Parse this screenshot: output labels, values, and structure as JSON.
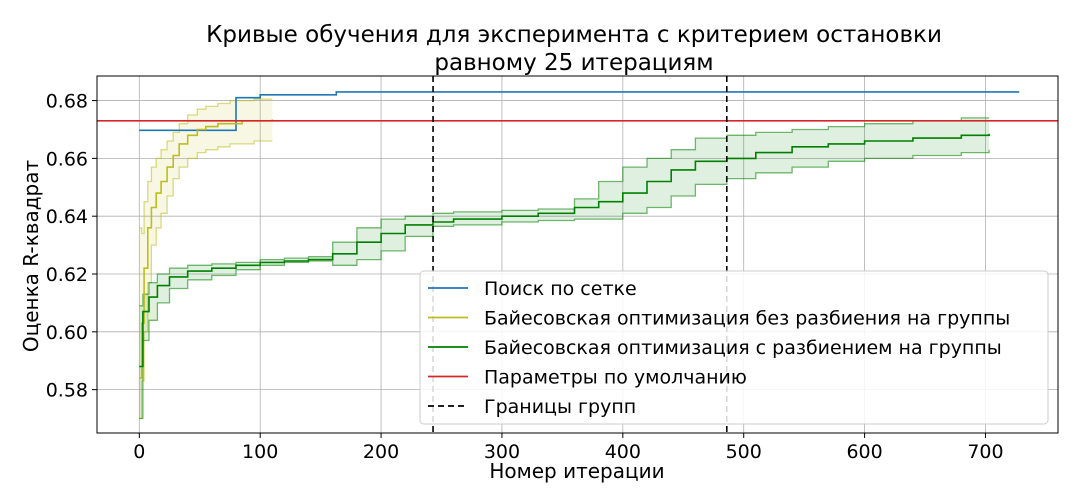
{
  "chart_data": {
    "type": "line",
    "title_lines": [
      "Кривые обучения для эксперимента с критерием остановки",
      "равному 25 итерациям"
    ],
    "xlabel": "Номер итерации",
    "ylabel": "Оценка R-квадрат",
    "xlim": [
      -35,
      760
    ],
    "ylim": [
      0.565,
      0.6885
    ],
    "xticks": [
      0,
      100,
      200,
      300,
      400,
      500,
      600,
      700
    ],
    "yticks": [
      0.58,
      0.6,
      0.62,
      0.64,
      0.66,
      0.68
    ],
    "ytick_labels": [
      "0.58",
      "0.60",
      "0.62",
      "0.64",
      "0.66",
      "0.68"
    ],
    "grid": true,
    "legend_position": "lower-right",
    "colors": {
      "grid_search": "#1f77b4",
      "bayes_no_groups": "#bcbd22",
      "bayes_groups": "#008000",
      "default_params": "#d62728",
      "group_bounds": "#000000"
    },
    "series": [
      {
        "name": "Поиск по сетке",
        "style": "step",
        "x": [
          0,
          80,
          80,
          100,
          100,
          163,
          163,
          728
        ],
        "y": [
          0.6697,
          0.6697,
          0.681,
          0.681,
          0.682,
          0.682,
          0.683,
          0.683
        ]
      },
      {
        "name": "Байесовская оптимизация без разбиения на группы",
        "style": "step",
        "x": [
          0,
          2,
          4,
          7,
          10,
          14,
          18,
          23,
          28,
          33,
          40,
          48,
          55,
          65,
          75,
          85,
          95,
          110
        ],
        "y": [
          0.584,
          0.603,
          0.622,
          0.636,
          0.643,
          0.648,
          0.652,
          0.657,
          0.661,
          0.665,
          0.668,
          0.67,
          0.671,
          0.672,
          0.672,
          0.673,
          0.673,
          0.6735
        ],
        "upper": [
          0.636,
          0.634,
          0.645,
          0.652,
          0.657,
          0.66,
          0.663,
          0.666,
          0.669,
          0.672,
          0.675,
          0.677,
          0.678,
          0.679,
          0.68,
          0.68,
          0.6805,
          0.6805
        ],
        "lower": [
          0.57,
          0.583,
          0.6,
          0.617,
          0.63,
          0.636,
          0.641,
          0.647,
          0.653,
          0.657,
          0.66,
          0.662,
          0.663,
          0.664,
          0.665,
          0.665,
          0.666,
          0.666
        ]
      },
      {
        "name": "Байесовская оптимизация с разбиением на группы",
        "style": "step",
        "x": [
          0,
          3,
          8,
          15,
          25,
          40,
          60,
          80,
          100,
          120,
          140,
          160,
          180,
          200,
          220,
          243,
          260,
          300,
          330,
          360,
          380,
          400,
          420,
          440,
          460,
          486,
          510,
          540,
          570,
          600,
          640,
          680,
          703
        ],
        "y": [
          0.588,
          0.607,
          0.612,
          0.616,
          0.619,
          0.621,
          0.622,
          0.623,
          0.624,
          0.6245,
          0.625,
          0.627,
          0.631,
          0.634,
          0.637,
          0.638,
          0.639,
          0.64,
          0.641,
          0.643,
          0.645,
          0.648,
          0.652,
          0.656,
          0.659,
          0.66,
          0.662,
          0.664,
          0.665,
          0.666,
          0.667,
          0.668,
          0.6685
        ],
        "upper": [
          0.609,
          0.613,
          0.617,
          0.62,
          0.622,
          0.623,
          0.6235,
          0.624,
          0.625,
          0.6255,
          0.626,
          0.631,
          0.636,
          0.639,
          0.64,
          0.641,
          0.6415,
          0.642,
          0.6425,
          0.646,
          0.652,
          0.657,
          0.66,
          0.663,
          0.667,
          0.668,
          0.669,
          0.67,
          0.671,
          0.672,
          0.673,
          0.674,
          0.674
        ],
        "lower": [
          0.57,
          0.597,
          0.604,
          0.61,
          0.615,
          0.618,
          0.6195,
          0.6215,
          0.623,
          0.624,
          0.6245,
          0.623,
          0.625,
          0.628,
          0.633,
          0.6365,
          0.637,
          0.638,
          0.6385,
          0.639,
          0.639,
          0.641,
          0.643,
          0.647,
          0.651,
          0.653,
          0.655,
          0.657,
          0.659,
          0.66,
          0.661,
          0.662,
          0.663
        ]
      },
      {
        "name": "Параметры по умолчанию",
        "style": "hline",
        "y": 0.673
      },
      {
        "name": "Границы групп",
        "style": "vlines",
        "x": [
          243,
          486
        ]
      }
    ]
  }
}
